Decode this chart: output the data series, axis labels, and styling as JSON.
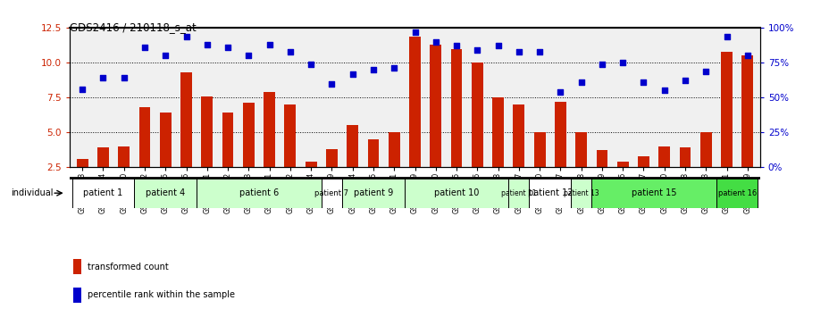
{
  "title": "GDS2416 / 210118_s_at",
  "samples": [
    "GSM135233",
    "GSM135234",
    "GSM135260",
    "GSM135232",
    "GSM135235",
    "GSM135236",
    "GSM135231",
    "GSM135242",
    "GSM135243",
    "GSM135251",
    "GSM135252",
    "GSM135244",
    "GSM135259",
    "GSM135254",
    "GSM135255",
    "GSM135261",
    "GSM135229",
    "GSM135230",
    "GSM135245",
    "GSM135246",
    "GSM135258",
    "GSM135247",
    "GSM135250",
    "GSM135237",
    "GSM135238",
    "GSM135239",
    "GSM135256",
    "GSM135257",
    "GSM135240",
    "GSM135248",
    "GSM135253",
    "GSM135241",
    "GSM135249"
  ],
  "bar_values": [
    3.1,
    3.9,
    4.0,
    6.8,
    6.4,
    9.3,
    7.6,
    6.4,
    7.1,
    7.9,
    7.0,
    2.9,
    3.8,
    5.5,
    4.5,
    5.0,
    11.9,
    11.3,
    11.0,
    10.0,
    7.5,
    7.0,
    5.0,
    7.2,
    5.0,
    3.7,
    2.9,
    3.3,
    4.0,
    3.9,
    5.0,
    10.8,
    10.5
  ],
  "dot_values": [
    8.1,
    8.9,
    8.9,
    11.1,
    10.5,
    11.9,
    11.3,
    11.1,
    10.5,
    11.3,
    10.8,
    9.9,
    8.5,
    9.2,
    9.5,
    9.6,
    12.2,
    11.5,
    11.2,
    10.9,
    11.2,
    10.8,
    10.8,
    7.9,
    8.6,
    9.9,
    10.0,
    8.6,
    8.0,
    8.7,
    9.4,
    11.9,
    10.5
  ],
  "patients": [
    {
      "label": "patient 1",
      "start": 0,
      "end": 2,
      "color": "#ffffff",
      "fontsize": 7
    },
    {
      "label": "patient 4",
      "start": 3,
      "end": 5,
      "color": "#ccffcc",
      "fontsize": 7
    },
    {
      "label": "patient 6",
      "start": 6,
      "end": 11,
      "color": "#ccffcc",
      "fontsize": 7
    },
    {
      "label": "patient 7",
      "start": 12,
      "end": 12,
      "color": "#ffffff",
      "fontsize": 6
    },
    {
      "label": "patient 9",
      "start": 13,
      "end": 15,
      "color": "#ccffcc",
      "fontsize": 7
    },
    {
      "label": "patient 10",
      "start": 16,
      "end": 20,
      "color": "#ccffcc",
      "fontsize": 7
    },
    {
      "label": "patient 11",
      "start": 21,
      "end": 21,
      "color": "#ccffcc",
      "fontsize": 5.5
    },
    {
      "label": "patient 12",
      "start": 22,
      "end": 23,
      "color": "#ffffff",
      "fontsize": 7
    },
    {
      "label": "patient 13",
      "start": 24,
      "end": 24,
      "color": "#ccffcc",
      "fontsize": 5.5
    },
    {
      "label": "patient 15",
      "start": 25,
      "end": 30,
      "color": "#66ee66",
      "fontsize": 7
    },
    {
      "label": "patient 16",
      "start": 31,
      "end": 32,
      "color": "#44dd44",
      "fontsize": 6
    }
  ],
  "ylim_left": [
    2.5,
    12.5
  ],
  "yticks_left": [
    2.5,
    5.0,
    7.5,
    10.0,
    12.5
  ],
  "yticks_right_vals": [
    0,
    25,
    50,
    75,
    100
  ],
  "yticks_right_labels": [
    "0%",
    "25%",
    "50%",
    "75%",
    "100%"
  ],
  "bar_color": "#cc2200",
  "dot_color": "#0000cc",
  "chart_bg": "#f0f0f0",
  "legend_bar_label": "transformed count",
  "legend_dot_label": "percentile rank within the sample",
  "hgrid_vals": [
    5.0,
    7.5,
    10.0
  ]
}
